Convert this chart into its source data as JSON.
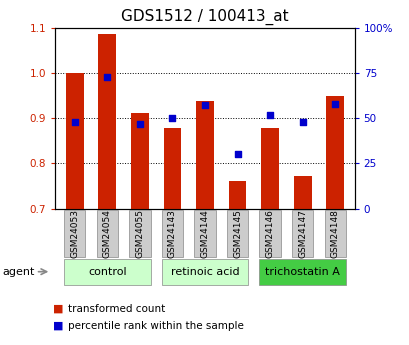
{
  "title": "GDS1512 / 100413_at",
  "samples": [
    "GSM24053",
    "GSM24054",
    "GSM24055",
    "GSM24143",
    "GSM24144",
    "GSM24145",
    "GSM24146",
    "GSM24147",
    "GSM24148"
  ],
  "red_values": [
    1.0,
    1.085,
    0.912,
    0.878,
    0.938,
    0.762,
    0.878,
    0.772,
    0.95
  ],
  "blue_values": [
    48,
    73,
    47,
    50,
    57,
    30,
    52,
    48,
    58
  ],
  "ylim_left": [
    0.7,
    1.1
  ],
  "ylim_right": [
    0,
    100
  ],
  "yticks_left": [
    0.7,
    0.8,
    0.9,
    1.0,
    1.1
  ],
  "yticks_right": [
    0,
    25,
    50,
    75,
    100
  ],
  "yticklabels_right": [
    "0",
    "25",
    "50",
    "75",
    "100%"
  ],
  "bar_color": "#cc2200",
  "dot_color": "#0000cc",
  "bar_bottom": 0.7,
  "group_boundaries": [
    [
      0,
      2,
      "control",
      "#ccffcc"
    ],
    [
      3,
      5,
      "retinoic acid",
      "#ccffcc"
    ],
    [
      6,
      8,
      "trichostatin A",
      "#44cc44"
    ]
  ],
  "legend_red": "transformed count",
  "legend_blue": "percentile rank within the sample",
  "agent_label": "agent",
  "title_fontsize": 11,
  "tick_fontsize": 7.5,
  "sample_box_color": "#cccccc",
  "sample_box_edge": "#888888",
  "group_box_edge": "#888888"
}
